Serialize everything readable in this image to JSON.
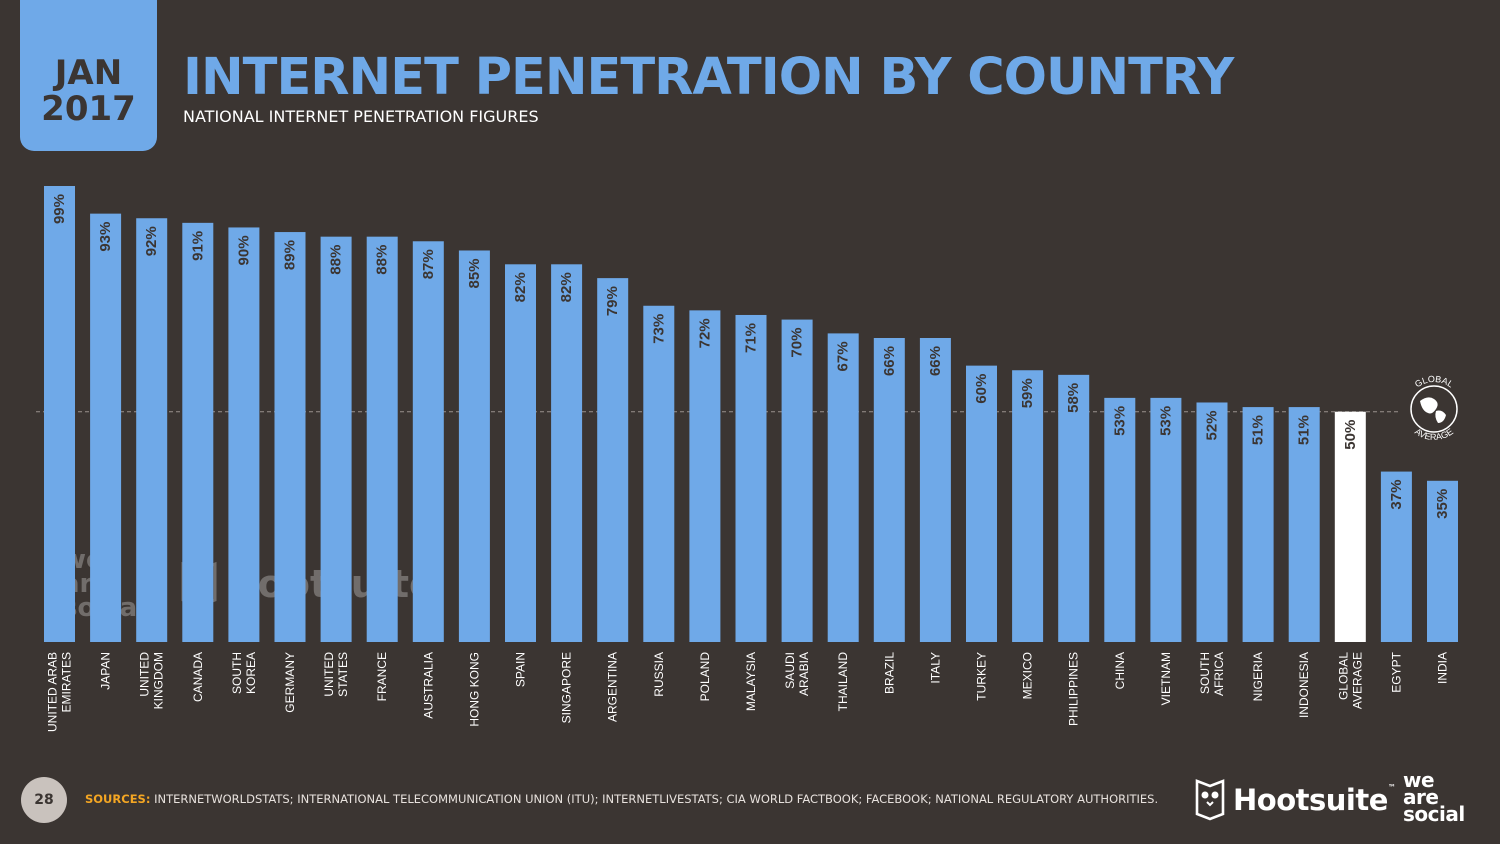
{
  "header": {
    "month": "JAN",
    "year": "2017",
    "title": "INTERNET PENETRATION BY COUNTRY",
    "subtitle": "NATIONAL INTERNET PENETRATION FIGURES"
  },
  "colors": {
    "bar": "#6fa9e8",
    "highlight": "#ffffff",
    "background": "#3b3532",
    "accent": "#f4a623"
  },
  "global_badge": {
    "top_text": "GLOBAL",
    "bottom_text": "AVERAGE"
  },
  "chart_data": {
    "type": "bar",
    "title": "INTERNET PENETRATION BY COUNTRY",
    "xlabel": "",
    "ylabel": "",
    "ylim": [
      0,
      100
    ],
    "reference_line": 50,
    "categories": [
      [
        "UNITED ARAB",
        "EMIRATES"
      ],
      [
        "JAPAN"
      ],
      [
        "UNITED",
        "KINGDOM"
      ],
      [
        "CANADA"
      ],
      [
        "SOUTH",
        "KOREA"
      ],
      [
        "GERMANY"
      ],
      [
        "UNITED",
        "STATES"
      ],
      [
        "FRANCE"
      ],
      [
        "AUSTRALIA"
      ],
      [
        "HONG KONG"
      ],
      [
        "SPAIN"
      ],
      [
        "SINGAPORE"
      ],
      [
        "ARGENTINA"
      ],
      [
        "RUSSIA"
      ],
      [
        "POLAND"
      ],
      [
        "MALAYSIA"
      ],
      [
        "SAUDI",
        "ARABIA"
      ],
      [
        "THAILAND"
      ],
      [
        "BRAZIL"
      ],
      [
        "ITALY"
      ],
      [
        "TURKEY"
      ],
      [
        "MEXICO"
      ],
      [
        "PHILIPPINES"
      ],
      [
        "CHINA"
      ],
      [
        "VIETNAM"
      ],
      [
        "SOUTH",
        "AFRICA"
      ],
      [
        "NIGERIA"
      ],
      [
        "INDONESIA"
      ],
      [
        "GLOBAL",
        "AVERAGE"
      ],
      [
        "EGYPT"
      ],
      [
        "INDIA"
      ]
    ],
    "values": [
      99,
      93,
      92,
      91,
      90,
      89,
      88,
      88,
      87,
      85,
      82,
      82,
      79,
      73,
      72,
      71,
      70,
      67,
      66,
      66,
      60,
      59,
      58,
      53,
      53,
      52,
      51,
      51,
      50,
      37,
      35
    ],
    "labels": [
      "99%",
      "93%",
      "92%",
      "91%",
      "90%",
      "89%",
      "88%",
      "88%",
      "87%",
      "85%",
      "82%",
      "82%",
      "79%",
      "73%",
      "72%",
      "71%",
      "70%",
      "67%",
      "66%",
      "66%",
      "60%",
      "59%",
      "58%",
      "53%",
      "53%",
      "52%",
      "51%",
      "51%",
      "50%",
      "37%",
      "35%"
    ],
    "highlight_index": 28
  },
  "watermark": {
    "we": "we",
    "are": "are",
    "social": "social",
    "hootsuite": "Hootsuite"
  },
  "footer": {
    "page_number": "28",
    "sources_label": "SOURCES:",
    "sources_text": "INTERNETWORLDSTATS; INTERNATIONAL TELECOMMUNICATION UNION (ITU); INTERNETLIVESTATS; CIA WORLD FACTBOOK; FACEBOOK; NATIONAL REGULATORY AUTHORITIES.",
    "hootsuite": "Hootsuite",
    "tm": "™",
    "we": "we",
    "are": "are",
    "social": "social"
  }
}
